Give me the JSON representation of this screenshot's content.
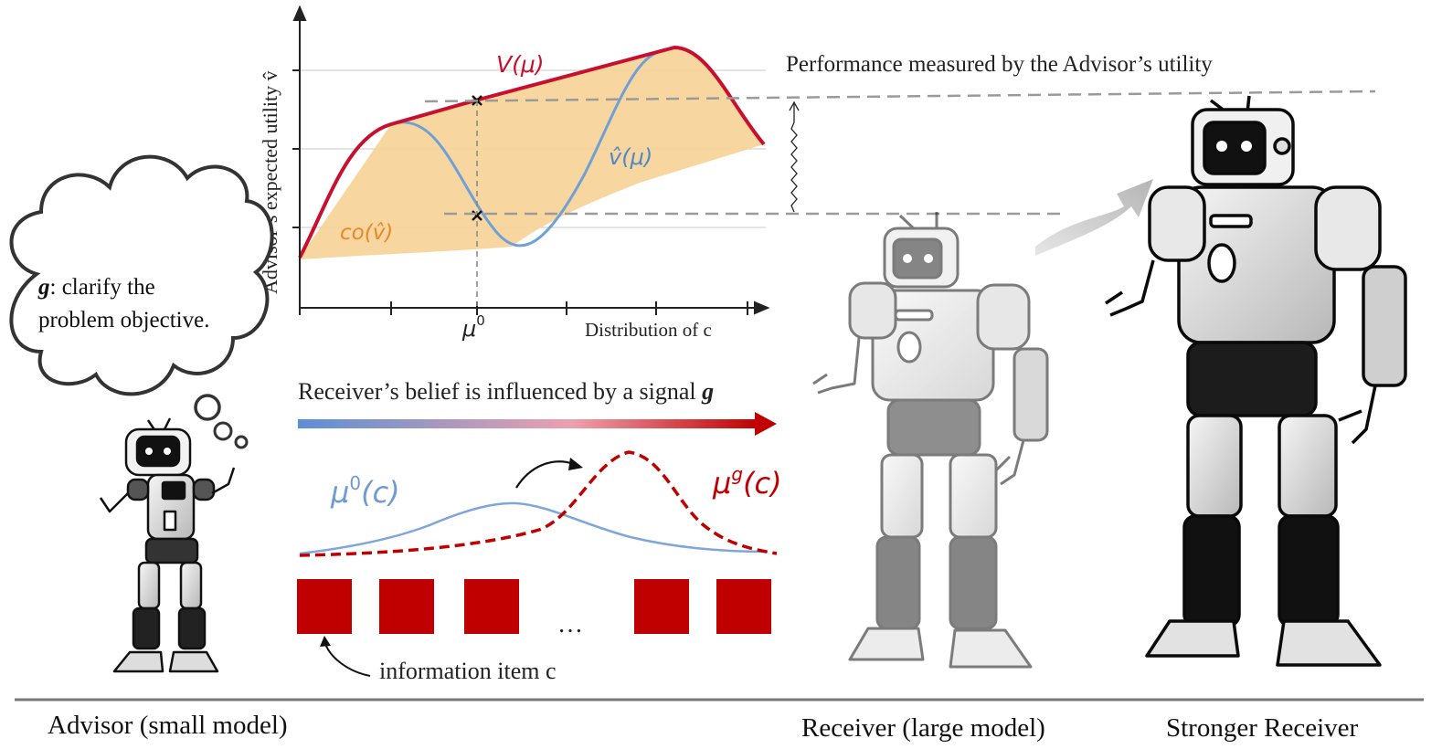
{
  "plot": {
    "y_axis_label": "Advisor’s expected utility v̂",
    "x_axis_label": "Distribution of c",
    "x_tick_mu0": "μ",
    "x_tick_mu0_sup": "0",
    "curve_V_label": "V(μ)",
    "curve_vhat_label": "v̂(μ)",
    "region_co_label": "co(v̂)",
    "colors": {
      "V": "#c8102e",
      "vhat": "#6fa0d6",
      "co_fill": "#f8d49a",
      "co_label": "#e8882a",
      "grid": "#c8c8c8",
      "dash": "#8a8a8a"
    }
  },
  "performance_label": "Performance measured by the Advisor’s utility",
  "signal": {
    "label_prefix": "Receiver’s belief is influenced by a signal ",
    "label_bold": "g",
    "gradient_start": "#5b8fd6",
    "gradient_mid": "#eea0ad",
    "gradient_end": "#c00000"
  },
  "distributions": {
    "prior_label": "μ",
    "prior_sup": "0",
    "prior_arg": "(c)",
    "posterior_label": "μ",
    "posterior_sup": "g",
    "posterior_arg": "(c)",
    "prior_color": "#7ea6d8",
    "posterior_color": "#c00000"
  },
  "items": {
    "ellipsis": "…",
    "caption": "information item c",
    "color": "#c00000"
  },
  "thought_bubble": {
    "bold": "g",
    "line1_rest": ": clarify the",
    "line2": "problem objective."
  },
  "robots": {
    "advisor_label": "Advisor (small model)",
    "receiver_label": "Receiver (large model)",
    "stronger_label": "Stronger Receiver"
  }
}
